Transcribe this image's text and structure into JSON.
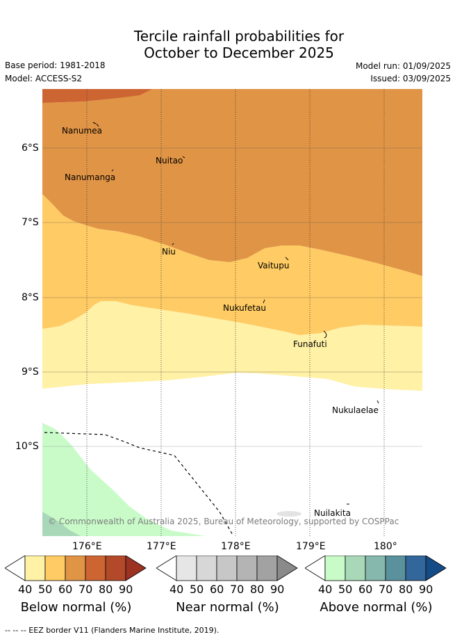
{
  "title_line1": "Tercile rainfall probabilities for",
  "title_line2": "October to December 2025",
  "base_period": "Base period: 1981-2018",
  "model": "Model: ACCESS-S2",
  "model_run": "Model run: 01/09/2025",
  "issued": "Issued: 03/09/2025",
  "lat_ticks": [
    "6°S",
    "7°S",
    "8°S",
    "9°S",
    "10°S"
  ],
  "lon_ticks": [
    "176°E",
    "177°E",
    "178°E",
    "179°E",
    "180°"
  ],
  "places": [
    "Nanumea",
    "Nuitao",
    "Nanumanga",
    "Niu",
    "Vaitupu",
    "Nukufetau",
    "Funafuti",
    "Nukulaelae",
    "Nuilakita"
  ],
  "credit": "© Commonwealth of Australia 2025, Bureau of Meteorology, supported by COSPPac",
  "colorbars": [
    {
      "title": "Below normal (%)",
      "labels": [
        "40",
        "50",
        "60",
        "70",
        "80",
        "90"
      ],
      "colors": [
        "#fff1a6",
        "#ffcb64",
        "#e09445",
        "#cd6532",
        "#b24a2a",
        "#9b3222"
      ]
    },
    {
      "title": "Near normal (%)",
      "labels": [
        "40",
        "50",
        "60",
        "70",
        "80",
        "90"
      ],
      "colors": [
        "#e6e6e6",
        "#d7d7d7",
        "#c7c7c7",
        "#b4b4b4",
        "#a2a2a2",
        "#8a8a8a"
      ]
    },
    {
      "title": "Above normal (%)",
      "labels": [
        "40",
        "50",
        "60",
        "70",
        "80",
        "90"
      ],
      "colors": [
        "#c9fbc9",
        "#a9d8b8",
        "#86b8ae",
        "#5b919c",
        "#33669a",
        "#144b86"
      ]
    }
  ],
  "footer": "--  --  -- EEZ border V11 (Flanders Marine Institute, 2019)."
}
